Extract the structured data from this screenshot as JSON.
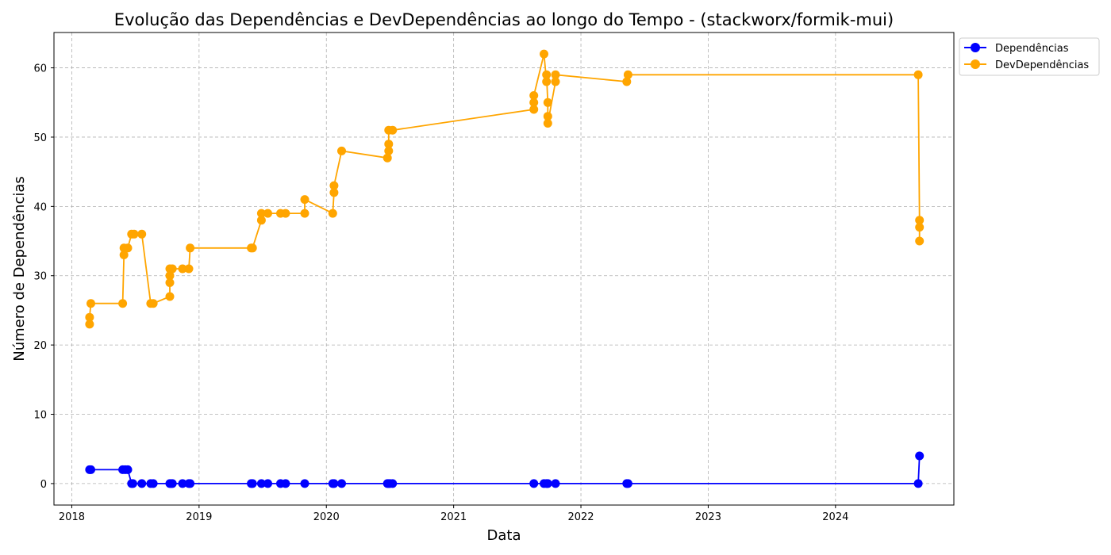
{
  "chart_data": {
    "type": "line",
    "title": "Evolução das Dependências e DevDependências ao longo do Tempo - (stackworx/formik-mui)",
    "xlabel": "Data",
    "ylabel": "Número de Dependências",
    "xlim": [
      2017.86,
      2024.93
    ],
    "ylim": [
      -3.1,
      65.1
    ],
    "x_ticks": [
      2018,
      2019,
      2020,
      2021,
      2022,
      2023,
      2024
    ],
    "y_ticks": [
      0,
      10,
      20,
      30,
      40,
      50,
      60
    ],
    "grid": true,
    "legend_position": "top-right",
    "series": [
      {
        "name": "Dependências",
        "color": "#0000ff",
        "points": [
          [
            2018.14,
            2
          ],
          [
            2018.15,
            2
          ],
          [
            2018.4,
            2
          ],
          [
            2018.42,
            2
          ],
          [
            2018.44,
            2
          ],
          [
            2018.47,
            0
          ],
          [
            2018.48,
            0
          ],
          [
            2018.55,
            0
          ],
          [
            2018.62,
            0
          ],
          [
            2018.64,
            0
          ],
          [
            2018.77,
            0
          ],
          [
            2018.78,
            0
          ],
          [
            2018.79,
            0
          ],
          [
            2018.87,
            0
          ],
          [
            2018.92,
            0
          ],
          [
            2018.93,
            0
          ],
          [
            2019.41,
            0
          ],
          [
            2019.42,
            0
          ],
          [
            2019.49,
            0
          ],
          [
            2019.54,
            0
          ],
          [
            2019.64,
            0
          ],
          [
            2019.68,
            0
          ],
          [
            2019.83,
            0
          ],
          [
            2020.05,
            0
          ],
          [
            2020.06,
            0
          ],
          [
            2020.12,
            0
          ],
          [
            2020.48,
            0
          ],
          [
            2020.49,
            0
          ],
          [
            2020.5,
            0
          ],
          [
            2020.52,
            0
          ],
          [
            2021.63,
            0
          ],
          [
            2021.71,
            0
          ],
          [
            2021.73,
            0
          ],
          [
            2021.74,
            0
          ],
          [
            2021.8,
            0
          ],
          [
            2022.36,
            0
          ],
          [
            2022.37,
            0
          ],
          [
            2024.65,
            0
          ],
          [
            2024.66,
            4
          ]
        ]
      },
      {
        "name": "DevDependências",
        "color": "#ffa500",
        "points": [
          [
            2018.14,
            23
          ],
          [
            2018.14,
            24
          ],
          [
            2018.15,
            26
          ],
          [
            2018.4,
            26
          ],
          [
            2018.41,
            33
          ],
          [
            2018.41,
            34
          ],
          [
            2018.44,
            34
          ],
          [
            2018.47,
            36
          ],
          [
            2018.49,
            36
          ],
          [
            2018.55,
            36
          ],
          [
            2018.62,
            26
          ],
          [
            2018.64,
            26
          ],
          [
            2018.77,
            27
          ],
          [
            2018.77,
            29
          ],
          [
            2018.77,
            30
          ],
          [
            2018.77,
            31
          ],
          [
            2018.79,
            31
          ],
          [
            2018.87,
            31
          ],
          [
            2018.92,
            31
          ],
          [
            2018.93,
            34
          ],
          [
            2019.41,
            34
          ],
          [
            2019.42,
            34
          ],
          [
            2019.49,
            38
          ],
          [
            2019.49,
            39
          ],
          [
            2019.54,
            39
          ],
          [
            2019.64,
            39
          ],
          [
            2019.68,
            39
          ],
          [
            2019.83,
            39
          ],
          [
            2019.83,
            41
          ],
          [
            2020.05,
            39
          ],
          [
            2020.06,
            42
          ],
          [
            2020.06,
            43
          ],
          [
            2020.12,
            48
          ],
          [
            2020.48,
            47
          ],
          [
            2020.49,
            48
          ],
          [
            2020.49,
            49
          ],
          [
            2020.49,
            51
          ],
          [
            2020.52,
            51
          ],
          [
            2021.63,
            54
          ],
          [
            2021.63,
            55
          ],
          [
            2021.63,
            56
          ],
          [
            2021.71,
            62
          ],
          [
            2021.73,
            58
          ],
          [
            2021.73,
            59
          ],
          [
            2021.74,
            55
          ],
          [
            2021.74,
            53
          ],
          [
            2021.74,
            52
          ],
          [
            2021.8,
            58
          ],
          [
            2021.8,
            59
          ],
          [
            2022.36,
            58
          ],
          [
            2022.37,
            59
          ],
          [
            2024.65,
            59
          ],
          [
            2024.66,
            38
          ],
          [
            2024.66,
            37
          ],
          [
            2024.66,
            35
          ]
        ]
      }
    ]
  }
}
